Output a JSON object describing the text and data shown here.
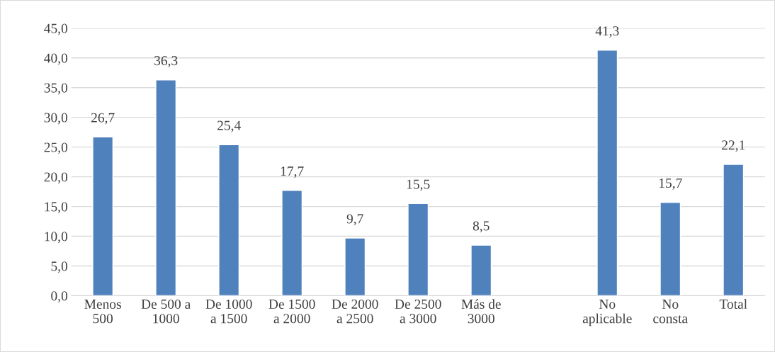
{
  "chart_data": {
    "type": "bar",
    "categories": [
      "Menos 500",
      "De 500 a 1000",
      "De 1000 a 1500",
      "De 1500 a 2000",
      "De 2000 a 2500",
      "De 2500 a 3000",
      "Más de 3000",
      null,
      "No aplicable",
      "No consta",
      "Total"
    ],
    "values": [
      26.7,
      36.3,
      25.4,
      17.7,
      9.7,
      15.5,
      8.5,
      null,
      41.3,
      15.7,
      22.1
    ],
    "value_labels": [
      "26,7",
      "36,3",
      "25,4",
      "17,7",
      "9,7",
      "15,5",
      "8,5",
      null,
      "41,3",
      "15,7",
      "22,1"
    ],
    "color": "#4f81bd",
    "ylim": [
      0,
      45
    ],
    "yticks": [
      {
        "value": 0,
        "label": "0,0"
      },
      {
        "value": 5,
        "label": "5,0"
      },
      {
        "value": 10,
        "label": "10,0"
      },
      {
        "value": 15,
        "label": "15,0"
      },
      {
        "value": 20,
        "label": "20,0"
      },
      {
        "value": 25,
        "label": "25,0"
      },
      {
        "value": 30,
        "label": "30,0"
      },
      {
        "value": 35,
        "label": "35,0"
      },
      {
        "value": 40,
        "label": "40,0"
      },
      {
        "value": 45,
        "label": "45,0"
      }
    ],
    "grid": "y"
  }
}
